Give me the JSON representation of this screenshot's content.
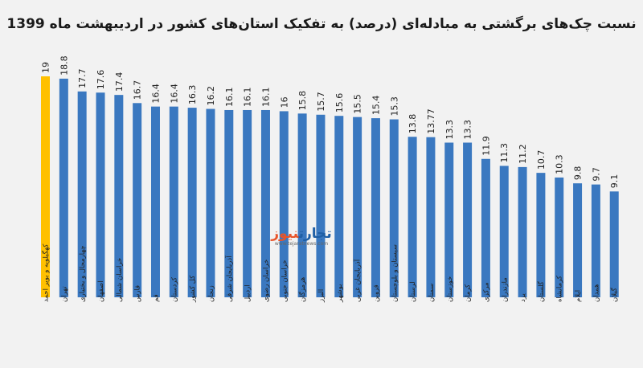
{
  "title": "نسبت چک‌های برگشتی به مبادله‌ای (درصد) به تفکیک استان‌های کشور در اردیبهشت ماه 1399",
  "watermark": {
    "brand_main": "تجارت",
    "brand_accent": "نیوز",
    "url": "www.tejaratnews.com"
  },
  "chart_data": {
    "type": "bar",
    "title": "نسبت چک‌های برگشتی به مبادله‌ای (درصد) به تفکیک استان‌های کشور در اردیبهشت ماه 1399",
    "xlabel": "",
    "ylabel": "",
    "ylim": [
      0,
      19
    ],
    "grid": false,
    "highlight_color": "#ffc000",
    "bar_color": "#3a78c0",
    "highlight_index": 0,
    "categories": [
      "کهگیلویه و بویر احمد",
      "تهران",
      "چهارمحال و بختیاری",
      "اصفهان",
      "خراسان شمالی",
      "فارس",
      "قم",
      "کردستان",
      "کل کشور",
      "زنجان",
      "آذربایجان شرقی",
      "اردبیل",
      "خراسان رضوی",
      "خراسان جنوبی",
      "هرمزگان",
      "البرز",
      "بوشهر",
      "آذربایجان غربی",
      "قزوین",
      "سیستان و بلوچستان",
      "لرستان",
      "سمنان",
      "خوزستان",
      "کرمان",
      "مرکزی",
      "مازندران",
      "یزد",
      "گلستان",
      "کرمانشاه",
      "ایلام",
      "همدان",
      "گیلان"
    ],
    "values": [
      19,
      18.8,
      17.7,
      17.6,
      17.4,
      16.7,
      16.4,
      16.4,
      16.3,
      16.2,
      16.1,
      16.1,
      16.1,
      16,
      15.8,
      15.7,
      15.6,
      15.5,
      15.4,
      15.3,
      13.8,
      13.77,
      13.3,
      13.3,
      11.9,
      11.3,
      11.2,
      10.7,
      10.3,
      9.8,
      9.7,
      9.1
    ]
  }
}
